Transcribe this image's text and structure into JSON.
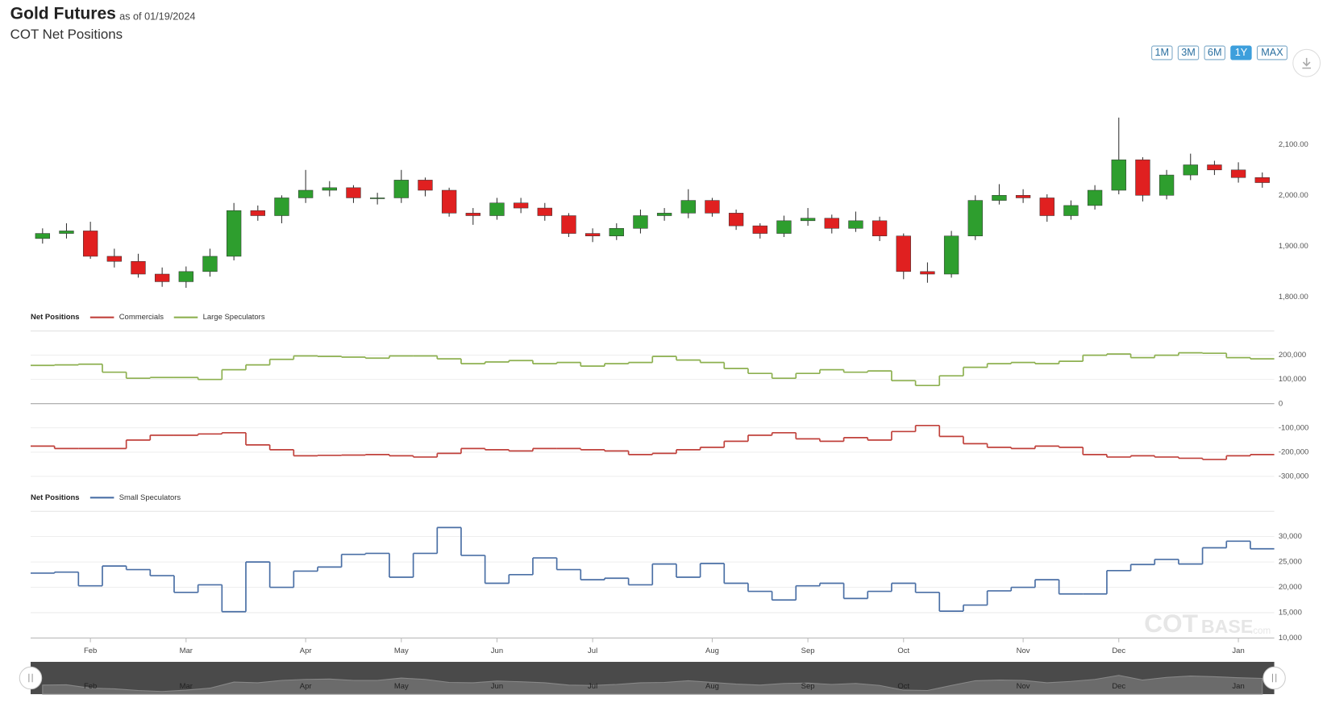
{
  "header": {
    "title": "Gold Futures",
    "date_note": "as of 01/19/2024",
    "subtitle": "COT Net Positions"
  },
  "range_buttons": [
    "1M",
    "3M",
    "6M",
    "1Y",
    "MAX"
  ],
  "active_range": "1Y",
  "watermark": [
    "COT",
    "BASE",
    ".com"
  ],
  "chart_data": [
    {
      "type": "candlestick",
      "up_color": "#2e9e2e",
      "down_color": "#e02020",
      "categories": [
        null,
        null,
        "Feb",
        null,
        null,
        null,
        "Mar",
        null,
        null,
        null,
        null,
        "Apr",
        null,
        null,
        null,
        "May",
        null,
        null,
        null,
        "Jun",
        null,
        null,
        null,
        "Jul",
        null,
        null,
        null,
        null,
        "Aug",
        null,
        null,
        null,
        "Sep",
        null,
        null,
        null,
        "Oct",
        null,
        null,
        null,
        null,
        "Nov",
        null,
        null,
        null,
        "Dec",
        null,
        null,
        null,
        null,
        "Jan",
        null
      ],
      "open": [
        1915,
        1925,
        1930,
        1880,
        1870,
        1845,
        1830,
        1850,
        1880,
        1970,
        1960,
        1995,
        2010,
        2015,
        1995,
        1995,
        2030,
        2010,
        1965,
        1960,
        1985,
        1975,
        1960,
        1925,
        1920,
        1935,
        1960,
        1965,
        1990,
        1965,
        1940,
        1925,
        1950,
        1955,
        1935,
        1950,
        1920,
        1850,
        1845,
        1920,
        1990,
        2000,
        1995,
        1960,
        1980,
        2010,
        2070,
        2000,
        2040,
        2060,
        2050,
        2035
      ],
      "high": [
        1935,
        1945,
        1948,
        1895,
        1885,
        1858,
        1860,
        1895,
        1985,
        1980,
        2000,
        2050,
        2028,
        2020,
        2005,
        2050,
        2035,
        2015,
        1975,
        1995,
        1995,
        1985,
        1965,
        1935,
        1945,
        1972,
        1975,
        2012,
        1995,
        1972,
        1945,
        1960,
        1975,
        1962,
        1968,
        1958,
        1925,
        1868,
        1930,
        2000,
        2022,
        2012,
        2002,
        1990,
        2020,
        2153,
        2075,
        2050,
        2082,
        2068,
        2065,
        2045
      ],
      "low": [
        1905,
        1915,
        1875,
        1858,
        1838,
        1820,
        1818,
        1840,
        1872,
        1950,
        1945,
        1985,
        1998,
        1985,
        1982,
        1985,
        1998,
        1958,
        1942,
        1952,
        1965,
        1950,
        1918,
        1908,
        1912,
        1925,
        1950,
        1955,
        1958,
        1932,
        1915,
        1918,
        1940,
        1925,
        1928,
        1910,
        1835,
        1828,
        1838,
        1912,
        1982,
        1985,
        1948,
        1952,
        1972,
        2002,
        1988,
        1992,
        2030,
        2040,
        2025,
        2015
      ],
      "close": [
        1925,
        1930,
        1880,
        1870,
        1845,
        1830,
        1850,
        1880,
        1970,
        1960,
        1995,
        2010,
        2015,
        1995,
        1995,
        2030,
        2010,
        1965,
        1960,
        1985,
        1975,
        1960,
        1925,
        1920,
        1935,
        1960,
        1965,
        1990,
        1965,
        1940,
        1925,
        1950,
        1955,
        1935,
        1950,
        1920,
        1850,
        1845,
        1920,
        1990,
        2000,
        1995,
        1960,
        1980,
        2010,
        2070,
        2000,
        2040,
        2060,
        2050,
        2035,
        2025
      ],
      "ylim": [
        1790,
        2170
      ],
      "yticks": [
        {
          "value": 1800,
          "label": "1,800.00"
        },
        {
          "value": 1900,
          "label": "1,900.00"
        },
        {
          "value": 2000,
          "label": "2,000.00"
        },
        {
          "value": 2100,
          "label": "2,100.00"
        }
      ]
    },
    {
      "type": "step",
      "title": "Net Positions",
      "ylim": [
        -300000,
        300000
      ],
      "yticks": [
        {
          "value": -300000,
          "label": "-300,000"
        },
        {
          "value": -200000,
          "label": "-200,000"
        },
        {
          "value": -100000,
          "label": "-100,000"
        },
        0,
        {
          "value": 100000,
          "label": "100,000"
        },
        {
          "value": 200000,
          "label": "200,000"
        }
      ],
      "series": [
        {
          "name": "Commercials",
          "color": "#c0413b",
          "values": [
            -175000,
            -185000,
            -185000,
            -185000,
            -150000,
            -130000,
            -130000,
            -125000,
            -120000,
            -170000,
            -190000,
            -215000,
            -213000,
            -212000,
            -210000,
            -215000,
            -220000,
            -205000,
            -185000,
            -190000,
            -195000,
            -185000,
            -185000,
            -190000,
            -195000,
            -210000,
            -205000,
            -190000,
            -180000,
            -155000,
            -130000,
            -120000,
            -145000,
            -155000,
            -140000,
            -150000,
            -115000,
            -90000,
            -135000,
            -165000,
            -180000,
            -185000,
            -175000,
            -180000,
            -210000,
            -220000,
            -215000,
            -220000,
            -225000,
            -230000,
            -215000,
            -210000
          ]
        },
        {
          "name": "Large Speculators",
          "color": "#8db050",
          "values": [
            158000,
            160000,
            163000,
            130000,
            105000,
            108000,
            108000,
            100000,
            140000,
            160000,
            183000,
            197000,
            195000,
            192000,
            188000,
            197000,
            197000,
            185000,
            165000,
            172000,
            178000,
            165000,
            170000,
            155000,
            165000,
            170000,
            195000,
            180000,
            170000,
            145000,
            125000,
            105000,
            125000,
            140000,
            130000,
            135000,
            95000,
            75000,
            115000,
            150000,
            165000,
            170000,
            165000,
            175000,
            200000,
            205000,
            190000,
            200000,
            210000,
            208000,
            190000,
            185000
          ]
        }
      ]
    },
    {
      "type": "step",
      "title": "Net Positions",
      "ylim": [
        10000,
        35000
      ],
      "yticks": [
        {
          "value": 10000,
          "label": "10,000"
        },
        {
          "value": 15000,
          "label": "15,000"
        },
        {
          "value": 20000,
          "label": "20,000"
        },
        {
          "value": 25000,
          "label": "25,000"
        },
        {
          "value": 30000,
          "label": "30,000"
        }
      ],
      "series": [
        {
          "name": "Small Speculators",
          "color": "#4a6fa5",
          "values": [
            22800,
            23000,
            20300,
            24200,
            23500,
            22300,
            19000,
            20500,
            15200,
            25000,
            20000,
            23200,
            24000,
            26500,
            26700,
            22000,
            26700,
            31800,
            26300,
            20800,
            22500,
            25800,
            23500,
            21500,
            21800,
            20500,
            24600,
            22000,
            24700,
            20800,
            19200,
            17500,
            20300,
            20800,
            17800,
            19200,
            20800,
            19000,
            15300,
            16500,
            19300,
            20000,
            21500,
            18700,
            18700,
            23300,
            24500,
            25500,
            24600,
            27800,
            29100,
            27600
          ]
        }
      ]
    }
  ]
}
